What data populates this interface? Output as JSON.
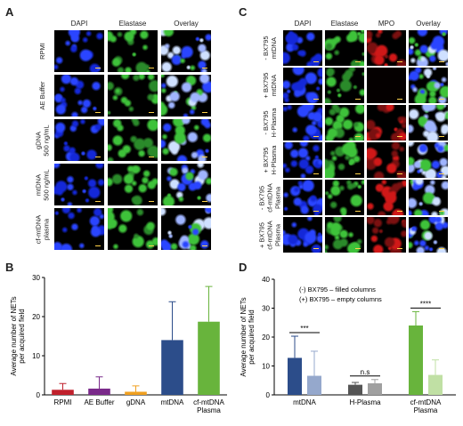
{
  "panels": {
    "A": {
      "letter": "A",
      "columns": [
        "DAPI",
        "Elastase",
        "Overlay"
      ],
      "rows": [
        [
          "RPMI"
        ],
        [
          "AE Buffer"
        ],
        [
          "gDNA",
          "500 ng/mL"
        ],
        [
          "mtDNA",
          "500 ng/mL"
        ],
        [
          "cf-mtDNA",
          "plasma"
        ]
      ]
    },
    "C": {
      "letter": "C",
      "columns": [
        "DAPI",
        "Elastase",
        "MPO",
        "Overlay"
      ],
      "rows": [
        [
          "- BX795",
          "mtDNA"
        ],
        [
          "+ BX795",
          "mtDNA"
        ],
        [
          "- BX795",
          "H-Plasma"
        ],
        [
          "+ BX795",
          "H-Plasma"
        ],
        [
          "- BX795",
          "cf-mtDNA",
          "Plasma"
        ],
        [
          "+ BX795",
          "cf-mtDNA",
          "Plasma"
        ]
      ]
    },
    "B": {
      "letter": "B"
    },
    "D": {
      "letter": "D"
    }
  },
  "colors": {
    "dapi": "#1428d8",
    "elastase": "#3ec23a",
    "mpo": "#d01818",
    "rpmi": "#c0202c",
    "ae_buffer": "#7a2a8a",
    "gdna": "#f0a020",
    "mtdna": "#2c4d8a",
    "cf_mtdna": "#68b43c",
    "d_mtdna_filled": "#2c4d8a",
    "d_mtdna_empty": "#95a8cc",
    "d_hplasma_filled": "#555555",
    "d_hplasma_empty": "#a0a0a0",
    "d_cf_filled": "#68b43c",
    "d_cf_empty": "#c0e0a4"
  },
  "chart_data": [
    {
      "type": "bar",
      "panel": "B",
      "categories": [
        [
          "RPMI"
        ],
        [
          "AE Buffer"
        ],
        [
          "gDNA"
        ],
        [
          "mtDNA"
        ],
        [
          "cf-mtDNA",
          "Plasma"
        ]
      ],
      "values": [
        1.3,
        1.6,
        0.8,
        14,
        18.7
      ],
      "errors": [
        1.6,
        3.0,
        1.5,
        9.8,
        9.0
      ],
      "ylabel": [
        "Average number of NETs",
        "per acquired field"
      ],
      "ylim": [
        0,
        30
      ],
      "yticks": [
        0,
        10,
        20,
        30
      ],
      "grid": false
    },
    {
      "type": "bar",
      "panel": "D",
      "categories": [
        [
          "mtDNA"
        ],
        [
          "H-Plasma"
        ],
        [
          "cf-mtDNA",
          "Plasma"
        ]
      ],
      "series": [
        {
          "values": [
            12.8,
            3.5,
            24.0
          ],
          "errors": [
            7.5,
            0.8,
            4.8
          ]
        },
        {
          "values": [
            6.6,
            4.0,
            6.9
          ],
          "errors": [
            8.5,
            1.3,
            5.2
          ]
        }
      ],
      "ylabel": [
        "Average number of NETs",
        "per acquired field"
      ],
      "ylim": [
        0,
        40
      ],
      "yticks": [
        0,
        10,
        20,
        30,
        40
      ],
      "grid": false,
      "legend_text": [
        "(-) BX795 – filled columns",
        "(+) BX795 – empty columns"
      ],
      "legend_placement": "top-left",
      "significance": [
        "***",
        "n.s",
        "****"
      ]
    }
  ]
}
